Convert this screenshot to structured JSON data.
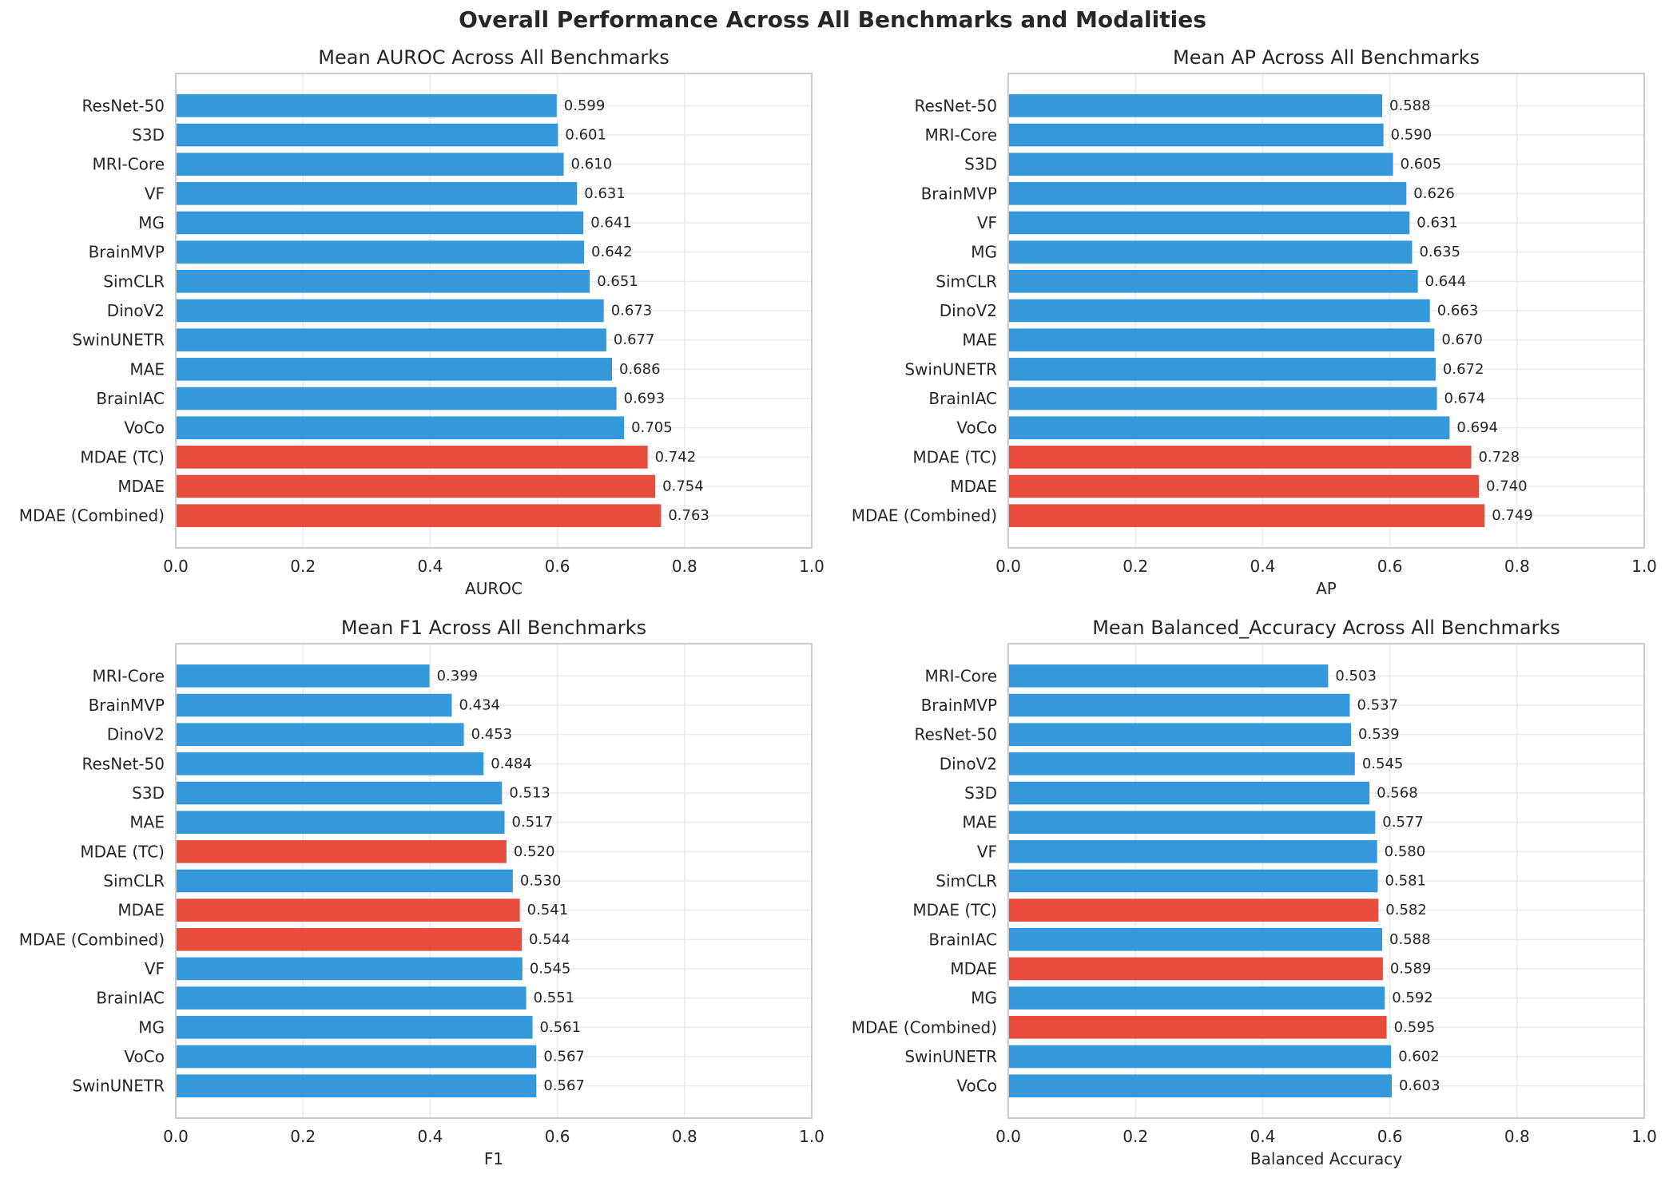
{
  "figure": {
    "title": "Overall Performance Across All Benchmarks and Modalities",
    "colors": {
      "baseline": "#3498db",
      "mdae": "#e74c3c",
      "grid": "#ebebeb",
      "axes": "#cccccc",
      "text": "#262626"
    }
  },
  "chart_data": [
    {
      "type": "bar",
      "orientation": "horizontal",
      "title": "Mean AUROC Across All Benchmarks",
      "xlabel": "AUROC",
      "ylabel": "",
      "xlim": [
        0,
        1.0
      ],
      "xticks": [
        "0.0",
        "0.2",
        "0.4",
        "0.6",
        "0.8",
        "1.0"
      ],
      "grid": true,
      "categories": [
        "ResNet-50",
        "S3D",
        "MRI-Core",
        "VF",
        "MG",
        "BrainMVP",
        "SimCLR",
        "DinoV2",
        "SwinUNETR",
        "MAE",
        "BrainIAC",
        "VoCo",
        "MDAE (TC)",
        "MDAE",
        "MDAE (Combined)"
      ],
      "values": [
        0.599,
        0.601,
        0.61,
        0.631,
        0.641,
        0.642,
        0.651,
        0.673,
        0.677,
        0.686,
        0.693,
        0.705,
        0.742,
        0.754,
        0.763
      ],
      "value_labels": [
        "0.599",
        "0.601",
        "0.610",
        "0.631",
        "0.641",
        "0.642",
        "0.651",
        "0.673",
        "0.677",
        "0.686",
        "0.693",
        "0.705",
        "0.742",
        "0.754",
        "0.763"
      ],
      "colors": [
        "#3498db",
        "#3498db",
        "#3498db",
        "#3498db",
        "#3498db",
        "#3498db",
        "#3498db",
        "#3498db",
        "#3498db",
        "#3498db",
        "#3498db",
        "#3498db",
        "#e74c3c",
        "#e74c3c",
        "#e74c3c"
      ]
    },
    {
      "type": "bar",
      "orientation": "horizontal",
      "title": "Mean AP Across All Benchmarks",
      "xlabel": "AP",
      "ylabel": "",
      "xlim": [
        0,
        1.0
      ],
      "xticks": [
        "0.0",
        "0.2",
        "0.4",
        "0.6",
        "0.8",
        "1.0"
      ],
      "grid": true,
      "categories": [
        "ResNet-50",
        "MRI-Core",
        "S3D",
        "BrainMVP",
        "VF",
        "MG",
        "SimCLR",
        "DinoV2",
        "MAE",
        "SwinUNETR",
        "BrainIAC",
        "VoCo",
        "MDAE (TC)",
        "MDAE",
        "MDAE (Combined)"
      ],
      "values": [
        0.588,
        0.59,
        0.605,
        0.626,
        0.631,
        0.635,
        0.644,
        0.663,
        0.67,
        0.672,
        0.674,
        0.694,
        0.728,
        0.74,
        0.749
      ],
      "value_labels": [
        "0.588",
        "0.590",
        "0.605",
        "0.626",
        "0.631",
        "0.635",
        "0.644",
        "0.663",
        "0.670",
        "0.672",
        "0.674",
        "0.694",
        "0.728",
        "0.740",
        "0.749"
      ],
      "colors": [
        "#3498db",
        "#3498db",
        "#3498db",
        "#3498db",
        "#3498db",
        "#3498db",
        "#3498db",
        "#3498db",
        "#3498db",
        "#3498db",
        "#3498db",
        "#3498db",
        "#e74c3c",
        "#e74c3c",
        "#e74c3c"
      ]
    },
    {
      "type": "bar",
      "orientation": "horizontal",
      "title": "Mean F1 Across All Benchmarks",
      "xlabel": "F1",
      "ylabel": "",
      "xlim": [
        0,
        1.0
      ],
      "xticks": [
        "0.0",
        "0.2",
        "0.4",
        "0.6",
        "0.8",
        "1.0"
      ],
      "grid": true,
      "categories": [
        "MRI-Core",
        "BrainMVP",
        "DinoV2",
        "ResNet-50",
        "S3D",
        "MAE",
        "MDAE (TC)",
        "SimCLR",
        "MDAE",
        "MDAE (Combined)",
        "VF",
        "BrainIAC",
        "MG",
        "VoCo",
        "SwinUNETR"
      ],
      "values": [
        0.399,
        0.434,
        0.453,
        0.484,
        0.513,
        0.517,
        0.52,
        0.53,
        0.541,
        0.544,
        0.545,
        0.551,
        0.561,
        0.567,
        0.567
      ],
      "value_labels": [
        "0.399",
        "0.434",
        "0.453",
        "0.484",
        "0.513",
        "0.517",
        "0.520",
        "0.530",
        "0.541",
        "0.544",
        "0.545",
        "0.551",
        "0.561",
        "0.567",
        "0.567"
      ],
      "colors": [
        "#3498db",
        "#3498db",
        "#3498db",
        "#3498db",
        "#3498db",
        "#3498db",
        "#e74c3c",
        "#3498db",
        "#e74c3c",
        "#e74c3c",
        "#3498db",
        "#3498db",
        "#3498db",
        "#3498db",
        "#3498db"
      ]
    },
    {
      "type": "bar",
      "orientation": "horizontal",
      "title": "Mean Balanced_Accuracy Across All Benchmarks",
      "xlabel": "Balanced Accuracy",
      "ylabel": "",
      "xlim": [
        0,
        1.0
      ],
      "xticks": [
        "0.0",
        "0.2",
        "0.4",
        "0.6",
        "0.8",
        "1.0"
      ],
      "grid": true,
      "categories": [
        "MRI-Core",
        "BrainMVP",
        "ResNet-50",
        "DinoV2",
        "S3D",
        "MAE",
        "VF",
        "SimCLR",
        "MDAE (TC)",
        "BrainIAC",
        "MDAE",
        "MG",
        "MDAE (Combined)",
        "SwinUNETR",
        "VoCo"
      ],
      "values": [
        0.503,
        0.537,
        0.539,
        0.545,
        0.568,
        0.577,
        0.58,
        0.581,
        0.582,
        0.588,
        0.589,
        0.592,
        0.595,
        0.602,
        0.603
      ],
      "value_labels": [
        "0.503",
        "0.537",
        "0.539",
        "0.545",
        "0.568",
        "0.577",
        "0.580",
        "0.581",
        "0.582",
        "0.588",
        "0.589",
        "0.592",
        "0.595",
        "0.602",
        "0.603"
      ],
      "colors": [
        "#3498db",
        "#3498db",
        "#3498db",
        "#3498db",
        "#3498db",
        "#3498db",
        "#3498db",
        "#3498db",
        "#e74c3c",
        "#3498db",
        "#e74c3c",
        "#3498db",
        "#e74c3c",
        "#3498db",
        "#3498db"
      ]
    }
  ]
}
